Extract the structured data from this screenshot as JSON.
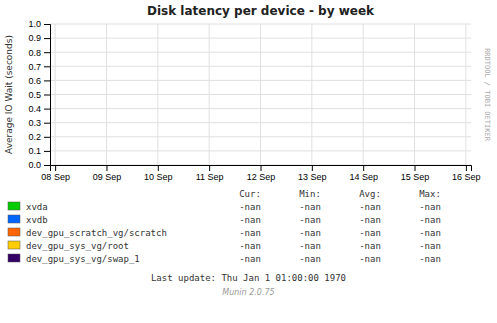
{
  "chart_data": {
    "type": "line",
    "title": "Disk latency per device - by week",
    "y_label": "Average IO Wait (seconds)",
    "categories": [
      "08 Sep",
      "09 Sep",
      "10 Sep",
      "11 Sep",
      "12 Sep",
      "13 Sep",
      "14 Sep",
      "15 Sep",
      "16 Sep"
    ],
    "series": [
      {
        "name": "xvda",
        "color": "#00cc00",
        "values": [
          null,
          null,
          null,
          null,
          null,
          null,
          null,
          null,
          null
        ]
      },
      {
        "name": "xvdb",
        "color": "#0066ff",
        "values": [
          null,
          null,
          null,
          null,
          null,
          null,
          null,
          null,
          null
        ]
      },
      {
        "name": "dev_gpu_scratch_vg/scratch",
        "color": "#ff6600",
        "values": [
          null,
          null,
          null,
          null,
          null,
          null,
          null,
          null,
          null
        ]
      },
      {
        "name": "dev_gpu_sys_vg/root",
        "color": "#ffcc00",
        "values": [
          null,
          null,
          null,
          null,
          null,
          null,
          null,
          null,
          null
        ]
      },
      {
        "name": "dev_gpu_sys_vg/swap_1",
        "color": "#330066",
        "values": [
          null,
          null,
          null,
          null,
          null,
          null,
          null,
          null,
          null
        ]
      }
    ],
    "ylim": [
      0,
      1.0
    ],
    "yticks": [
      {
        "value": 0,
        "label": "0.0"
      },
      0.1,
      0.2,
      0.3,
      0.4,
      0.5,
      0.6,
      0.7,
      0.8,
      0.9,
      {
        "value": 1,
        "label": "1.0"
      }
    ],
    "grid": true,
    "table": {
      "headers": [
        "Cur:",
        "Min:",
        "Avg:",
        "Max:"
      ],
      "rows": [
        [
          "-nan",
          "-nan",
          "-nan",
          "-nan"
        ],
        [
          "-nan",
          "-nan",
          "-nan",
          "-nan"
        ],
        [
          "-nan",
          "-nan",
          "-nan",
          "-nan"
        ],
        [
          "-nan",
          "-nan",
          "-nan",
          "-nan"
        ],
        [
          "-nan",
          "-nan",
          "-nan",
          "-nan"
        ]
      ]
    },
    "annotations": [
      "Last update: Thu Jan  1 01:00:00 1970",
      "Munin 2.0.75",
      "RRDTOOL / TOBI OETIKER"
    ]
  }
}
